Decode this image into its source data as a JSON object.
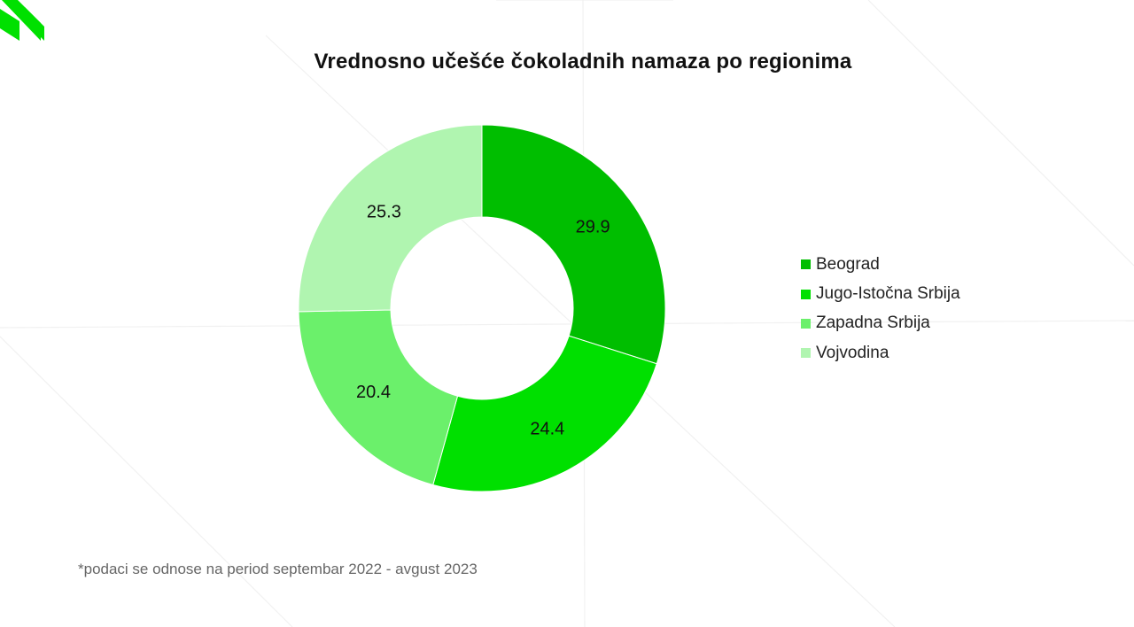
{
  "chart_data": {
    "type": "pie",
    "donut": true,
    "title": "Vrednosno učešće čokoladnih namaza po regionima",
    "categories": [
      "Beograd",
      "Jugo-Istočna Srbija",
      "Zapadna Srbija",
      "Vojvodina"
    ],
    "values": [
      29.9,
      24.4,
      20.4,
      25.3
    ],
    "colors": [
      "#00BE00",
      "#00E000",
      "#6BF06B",
      "#B0F5B0"
    ],
    "legend_position": "right"
  },
  "footnote": "*podaci se odnose na period septembar 2022 - avgust 2023",
  "brand": {
    "logo_icon": "brand-stripes-icon",
    "accent_color": "#00E000"
  }
}
